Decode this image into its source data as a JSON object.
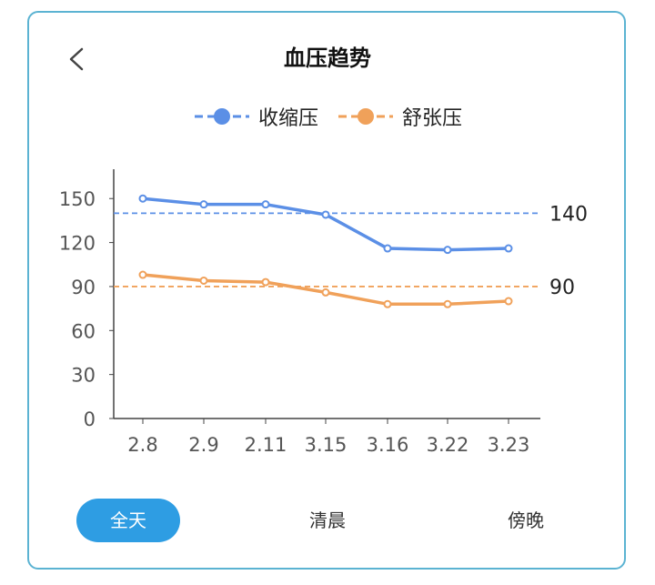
{
  "header": {
    "title": "血压趋势",
    "back_icon": "chevron-left-icon"
  },
  "tabs": [
    {
      "label": "全天",
      "active": true
    },
    {
      "label": "清晨",
      "active": false
    },
    {
      "label": "傍晚",
      "active": false
    }
  ],
  "colors": {
    "systolic": "#5b8fe6",
    "diastolic": "#f0a15a",
    "accent": "#2e9de3",
    "border": "#5bb3d2"
  },
  "chart_data": {
    "type": "line",
    "categories": [
      "2.8",
      "2.9",
      "2.11",
      "3.15",
      "3.16",
      "3.22",
      "3.23"
    ],
    "series": [
      {
        "name": "收缩压",
        "values": [
          150,
          146,
          146,
          139,
          116,
          115,
          116
        ],
        "color": "#5b8fe6"
      },
      {
        "name": "舒张压",
        "values": [
          98,
          94,
          93,
          86,
          78,
          78,
          80
        ],
        "color": "#f0a15a"
      }
    ],
    "reference_lines": [
      {
        "value": 140,
        "label": "140",
        "color": "#5b8fe6"
      },
      {
        "value": 90,
        "label": "90",
        "color": "#f0a15a"
      }
    ],
    "yticks": [
      0,
      30,
      60,
      90,
      120,
      150
    ],
    "ylim": [
      0,
      170
    ],
    "xlabel": "",
    "ylabel": "",
    "title": "",
    "legend": "top-center",
    "grid": false
  }
}
